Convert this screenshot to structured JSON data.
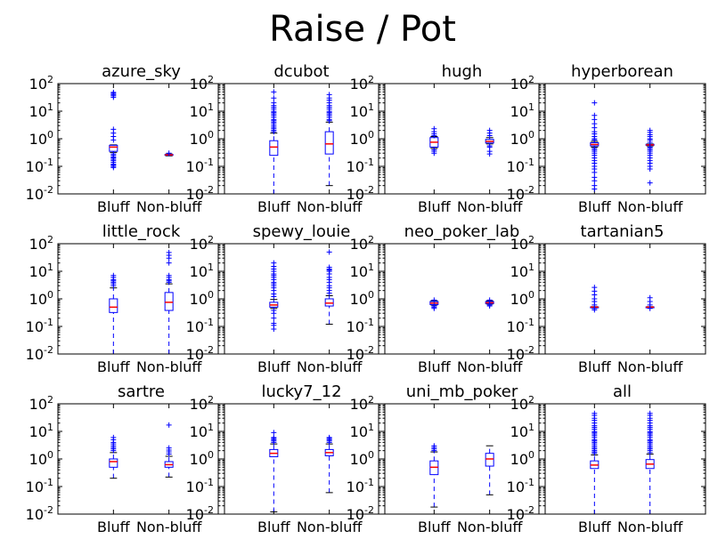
{
  "figure": {
    "title": "Raise / Pot"
  },
  "chart_data": {
    "type": "box",
    "title": "Raise / Pot",
    "y_scale": "log",
    "ylim": [
      0.01,
      100
    ],
    "y_tick_labels": [
      {
        "base": "10",
        "exp": "2"
      },
      {
        "base": "10",
        "exp": "1"
      },
      {
        "base": "10",
        "exp": "0"
      },
      {
        "base": "10",
        "exp": "-1"
      },
      {
        "base": "10",
        "exp": "-2"
      }
    ],
    "y_tick_values": [
      100,
      10,
      1,
      0.1,
      0.01
    ],
    "categories": [
      "Bluff",
      "Non-bluff"
    ],
    "colors": {
      "box": "#0000ff",
      "median": "#ff0000",
      "frame": "#000000"
    },
    "panels": [
      {
        "title": "azure_sky",
        "boxes": [
          {
            "category": "Bluff",
            "whisker_low": 0.32,
            "q1": 0.35,
            "median": 0.5,
            "q3": 0.58,
            "whisker_high": 0.6,
            "fliers": [
              0.09,
              0.1,
              0.11,
              0.12,
              0.14,
              0.16,
              0.18,
              0.2,
              0.22,
              0.25,
              0.28,
              0.9,
              1.2,
              1.6,
              2.2,
              32,
              36,
              40,
              44,
              48
            ]
          },
          {
            "category": "Non-bluff",
            "whisker_low": 0.24,
            "q1": 0.25,
            "median": 0.26,
            "q3": 0.27,
            "whisker_high": 0.28,
            "fliers": [
              0.3
            ]
          }
        ]
      },
      {
        "title": "dcubot",
        "boxes": [
          {
            "category": "Bluff",
            "whisker_low": 0.01,
            "q1": 0.25,
            "median": 0.5,
            "q3": 0.85,
            "whisker_high": 1.6,
            "fliers": [
              1.8,
              2,
              2.3,
              2.6,
              3,
              3.5,
              4,
              4.5,
              5,
              6,
              7,
              8,
              9,
              10,
              12,
              14,
              16,
              20,
              30,
              50
            ]
          },
          {
            "category": "Non-bluff",
            "whisker_low": 0.02,
            "q1": 0.28,
            "median": 0.65,
            "q3": 1.8,
            "whisker_high": 4,
            "fliers": [
              4.5,
              5,
              6,
              7,
              8,
              9,
              10,
              12,
              14,
              16,
              20,
              25,
              30,
              40
            ]
          }
        ]
      },
      {
        "title": "hugh",
        "boxes": [
          {
            "category": "Bluff",
            "whisker_low": 0.45,
            "q1": 0.5,
            "median": 0.75,
            "q3": 1.1,
            "whisker_high": 1.2,
            "fliers": [
              0.3,
              0.35,
              0.4,
              1.3,
              1.5,
              1.8,
              2.3
            ]
          },
          {
            "category": "Non-bluff",
            "whisker_low": 0.65,
            "q1": 0.7,
            "median": 0.8,
            "q3": 0.95,
            "whisker_high": 1.1,
            "fliers": [
              0.28,
              0.35,
              0.5,
              0.55,
              1.3,
              1.6,
              2
            ]
          }
        ]
      },
      {
        "title": "hyperborean",
        "boxes": [
          {
            "category": "Bluff",
            "whisker_low": 0.5,
            "q1": 0.55,
            "median": 0.62,
            "q3": 0.72,
            "whisker_high": 0.8,
            "fliers": [
              0.015,
              0.02,
              0.03,
              0.04,
              0.06,
              0.08,
              0.1,
              0.13,
              0.16,
              0.2,
              0.25,
              0.3,
              0.35,
              0.4,
              0.45,
              0.9,
              1,
              1.2,
              1.5,
              1.8,
              2.5,
              3.5,
              5,
              7,
              20
            ]
          },
          {
            "category": "Non-bluff",
            "whisker_low": 0.55,
            "q1": 0.58,
            "median": 0.6,
            "q3": 0.63,
            "whisker_high": 0.65,
            "fliers": [
              0.025,
              0.08,
              0.1,
              0.13,
              0.16,
              0.2,
              0.25,
              0.3,
              0.35,
              0.4,
              0.45,
              0.5,
              0.75,
              0.9,
              1,
              1.2,
              1.4,
              1.7,
              2
            ]
          }
        ]
      },
      {
        "title": "little_rock",
        "boxes": [
          {
            "category": "Bluff",
            "whisker_low": 0.01,
            "q1": 0.32,
            "median": 0.5,
            "q3": 1,
            "whisker_high": 2.5,
            "fliers": [
              3,
              3.5,
              4,
              4.5,
              5,
              6,
              7
            ]
          },
          {
            "category": "Non-bluff",
            "whisker_low": 0.01,
            "q1": 0.38,
            "median": 0.75,
            "q3": 1.7,
            "whisker_high": 3.5,
            "fliers": [
              4,
              4.5,
              5,
              6,
              7,
              20,
              30,
              38,
              48
            ]
          }
        ]
      },
      {
        "title": "spewy_louie",
        "boxes": [
          {
            "category": "Bluff",
            "whisker_low": 0.45,
            "q1": 0.5,
            "median": 0.6,
            "q3": 0.75,
            "whisker_high": 0.95,
            "fliers": [
              0.08,
              0.11,
              0.13,
              0.2,
              0.3,
              0.38,
              1.2,
              1.5,
              2,
              2.5,
              3,
              3.5,
              4,
              5,
              6,
              7,
              8,
              10,
              12,
              15,
              20
            ]
          },
          {
            "category": "Non-bluff",
            "whisker_low": 0.12,
            "q1": 0.55,
            "median": 0.7,
            "q3": 1,
            "whisker_high": 1.3,
            "fliers": [
              1.6,
              2,
              2.5,
              3,
              4,
              5,
              6,
              8,
              10,
              11,
              12,
              14,
              50
            ]
          }
        ]
      },
      {
        "title": "neo_poker_lab",
        "boxes": [
          {
            "category": "Bluff",
            "whisker_low": 0.6,
            "q1": 0.62,
            "median": 0.7,
            "q3": 0.8,
            "whisker_high": 0.85,
            "fliers": [
              0.45,
              0.5,
              0.55,
              0.9
            ]
          },
          {
            "category": "Non-bluff",
            "whisker_low": 0.65,
            "q1": 0.67,
            "median": 0.72,
            "q3": 0.8,
            "whisker_high": 0.85,
            "fliers": [
              0.55,
              0.6,
              0.9
            ]
          }
        ]
      },
      {
        "title": "tartanian5",
        "boxes": [
          {
            "category": "Bluff",
            "whisker_low": 0.48,
            "q1": 0.49,
            "median": 0.5,
            "q3": 0.51,
            "whisker_high": 0.52,
            "fliers": [
              0.4,
              0.45,
              0.6,
              0.8,
              1,
              1.4,
              1.9,
              2.6
            ]
          },
          {
            "category": "Non-bluff",
            "whisker_low": 0.48,
            "q1": 0.49,
            "median": 0.5,
            "q3": 0.51,
            "whisker_high": 0.52,
            "fliers": [
              0.45,
              0.6,
              0.8,
              1.1
            ]
          }
        ]
      },
      {
        "title": "sartre",
        "boxes": [
          {
            "category": "Bluff",
            "whisker_low": 0.2,
            "q1": 0.5,
            "median": 0.8,
            "q3": 1,
            "whisker_high": 1.7,
            "fliers": [
              2,
              2.3,
              2.6,
              3,
              3.5,
              4,
              5,
              6
            ]
          },
          {
            "category": "Non-bluff",
            "whisker_low": 0.22,
            "q1": 0.5,
            "median": 0.62,
            "q3": 0.8,
            "whisker_high": 1.25,
            "fliers": [
              1.5,
              1.8,
              2.1,
              2.5,
              17
            ]
          }
        ]
      },
      {
        "title": "lucky7_12",
        "boxes": [
          {
            "category": "Bluff",
            "whisker_low": 0.012,
            "q1": 1.2,
            "median": 1.6,
            "q3": 2.2,
            "whisker_high": 3.5,
            "fliers": [
              4,
              4.5,
              5,
              5.5,
              6,
              9
            ]
          },
          {
            "category": "Non-bluff",
            "whisker_low": 0.06,
            "q1": 1.3,
            "median": 1.7,
            "q3": 2.2,
            "whisker_high": 3.5,
            "fliers": [
              4,
              4.5,
              5,
              5.5,
              6
            ]
          }
        ]
      },
      {
        "title": "uni_mb_poker",
        "boxes": [
          {
            "category": "Bluff",
            "whisker_low": 0.018,
            "q1": 0.27,
            "median": 0.5,
            "q3": 0.85,
            "whisker_high": 1.8,
            "fliers": [
              2,
              2.3,
              2.6,
              3
            ]
          },
          {
            "category": "Non-bluff",
            "whisker_low": 0.05,
            "q1": 0.55,
            "median": 1,
            "q3": 1.6,
            "whisker_high": 3,
            "fliers": []
          }
        ]
      },
      {
        "title": "all",
        "boxes": [
          {
            "category": "Bluff",
            "whisker_low": 0.01,
            "q1": 0.45,
            "median": 0.6,
            "q3": 0.85,
            "whisker_high": 1.4,
            "fliers": [
              1.6,
              1.8,
              2,
              2.3,
              2.6,
              3,
              3.5,
              4,
              4.5,
              5,
              6,
              7,
              8,
              9,
              10,
              12,
              14,
              16,
              20,
              25,
              30,
              38,
              45
            ]
          },
          {
            "category": "Non-bluff",
            "whisker_low": 0.01,
            "q1": 0.45,
            "median": 0.65,
            "q3": 0.95,
            "whisker_high": 1.5,
            "fliers": [
              1.7,
              2,
              2.3,
              2.6,
              3,
              3.5,
              4,
              4.5,
              5,
              6,
              7,
              8,
              9,
              10,
              12,
              14,
              16,
              20,
              25,
              30,
              38,
              45
            ]
          }
        ]
      }
    ]
  }
}
